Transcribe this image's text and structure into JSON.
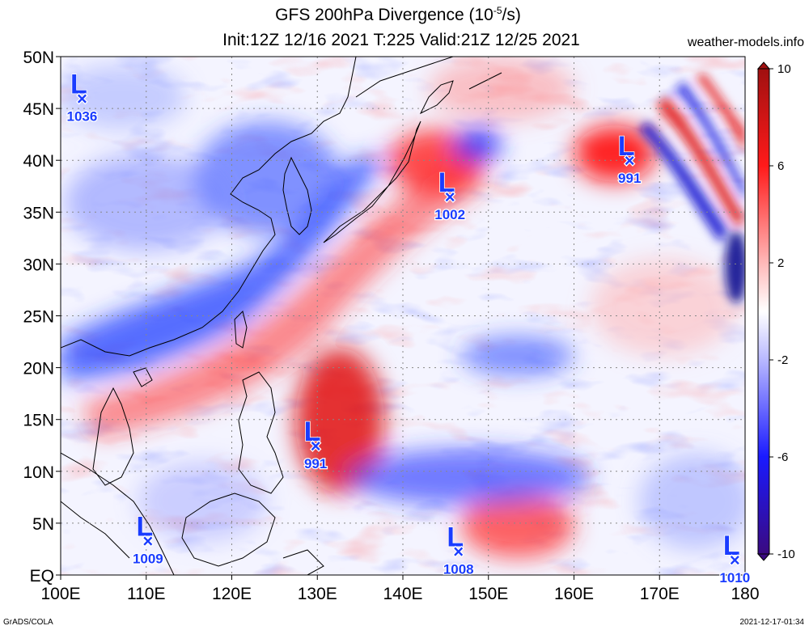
{
  "title_line1": "GFS 200hPa Divergence (10",
  "title_exp": "-5",
  "title_unit_end": "/s)",
  "title_line2": "Init:12Z 12/16 2021 T:225 Valid:21Z 12/25 2021",
  "brand": "weather-models.info",
  "footer_left": "GrADS/COLA",
  "footer_right": "2021-12-17-01:34",
  "map": {
    "lon_range": [
      100,
      180
    ],
    "lat_range": [
      0,
      50
    ],
    "x_ticks": [
      "100E",
      "110E",
      "120E",
      "130E",
      "140E",
      "150E",
      "160E",
      "170E",
      "180"
    ],
    "y_ticks": [
      "50N",
      "45N",
      "40N",
      "35N",
      "30N",
      "25N",
      "20N",
      "15N",
      "10N",
      "5N",
      "EQ"
    ],
    "grid": true
  },
  "colorbar": {
    "range": [
      -10,
      10
    ],
    "labels": [
      "10",
      "6",
      "2",
      "-2",
      "-6",
      "-10"
    ],
    "colors": {
      "max": "#a01010",
      "high": "#ff1a1a",
      "mid_pos": "#ffb8b8",
      "zero": "#ffffff",
      "mid_neg": "#b8b8ff",
      "low": "#1a1aff",
      "min": "#3a0a80"
    }
  },
  "lows": [
    {
      "lon": 102.5,
      "lat": 46,
      "pressure": "1036"
    },
    {
      "lon": 145.5,
      "lat": 36.5,
      "pressure": "1002"
    },
    {
      "lon": 166.5,
      "lat": 40,
      "pressure": "991"
    },
    {
      "lon": 129.8,
      "lat": 12.5,
      "pressure": "991"
    },
    {
      "lon": 110.2,
      "lat": 3.3,
      "pressure": "1009"
    },
    {
      "lon": 146.5,
      "lat": 2.3,
      "pressure": "1008"
    },
    {
      "lon": 178.8,
      "lat": 1.5,
      "pressure": "1010"
    }
  ],
  "low_symbol": "L",
  "low_marker": "×"
}
